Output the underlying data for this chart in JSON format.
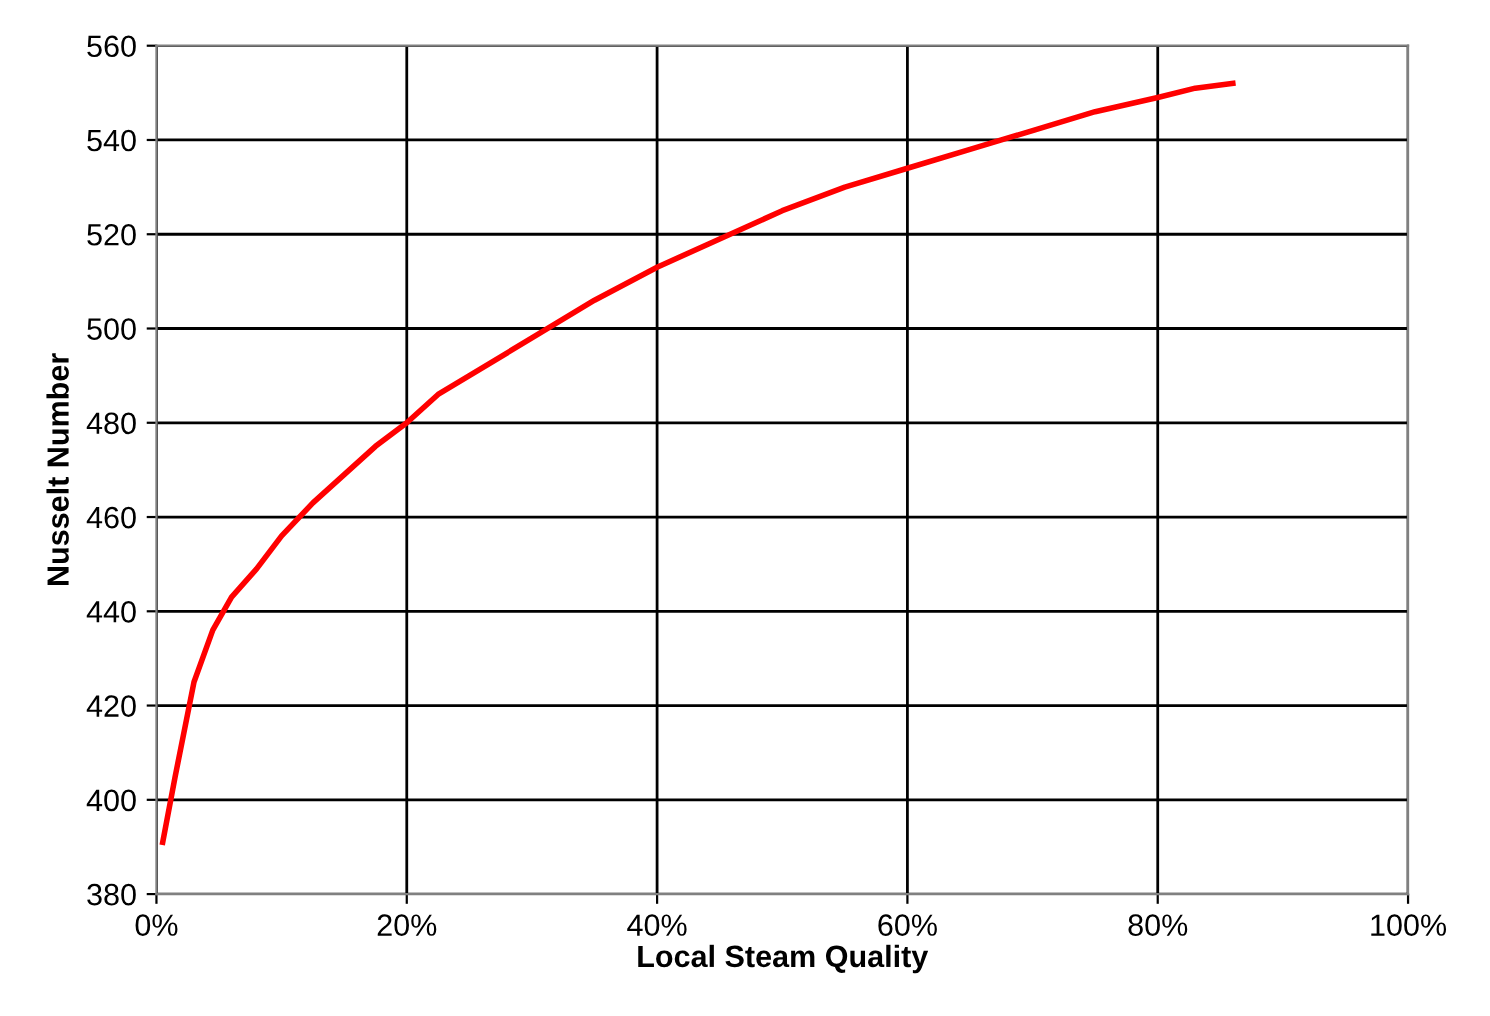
{
  "chart_data": {
    "type": "line",
    "xlabel": "Local Steam Quality",
    "ylabel": "Nusselt Number",
    "x": [
      0.5,
      1.5,
      3,
      4.5,
      6,
      8,
      10,
      12.5,
      15,
      17.5,
      20,
      22.5,
      25,
      30,
      35,
      40,
      45,
      50,
      55,
      60,
      65,
      70,
      75,
      80,
      83,
      86
    ],
    "series": [
      {
        "color": "#ff0000",
        "values": [
          391,
          405,
          425,
          436,
          443,
          449,
          456,
          463,
          469,
          475,
          480,
          486,
          490,
          498,
          506,
          513,
          519,
          525,
          530,
          534,
          538,
          542,
          546,
          549,
          551,
          552
        ]
      }
    ],
    "xlim": [
      0,
      100
    ],
    "ylim": [
      380,
      560
    ],
    "xticks": [
      {
        "value": 0,
        "label": "0%"
      },
      {
        "value": 20,
        "label": "20%"
      },
      {
        "value": 40,
        "label": "40%"
      },
      {
        "value": 60,
        "label": "60%"
      },
      {
        "value": 80,
        "label": "80%"
      },
      {
        "value": 100,
        "label": "100%"
      }
    ],
    "yticks": [
      380,
      400,
      420,
      440,
      460,
      480,
      500,
      520,
      540,
      560
    ],
    "grid": true,
    "marker": "none",
    "line_style": "solid"
  }
}
